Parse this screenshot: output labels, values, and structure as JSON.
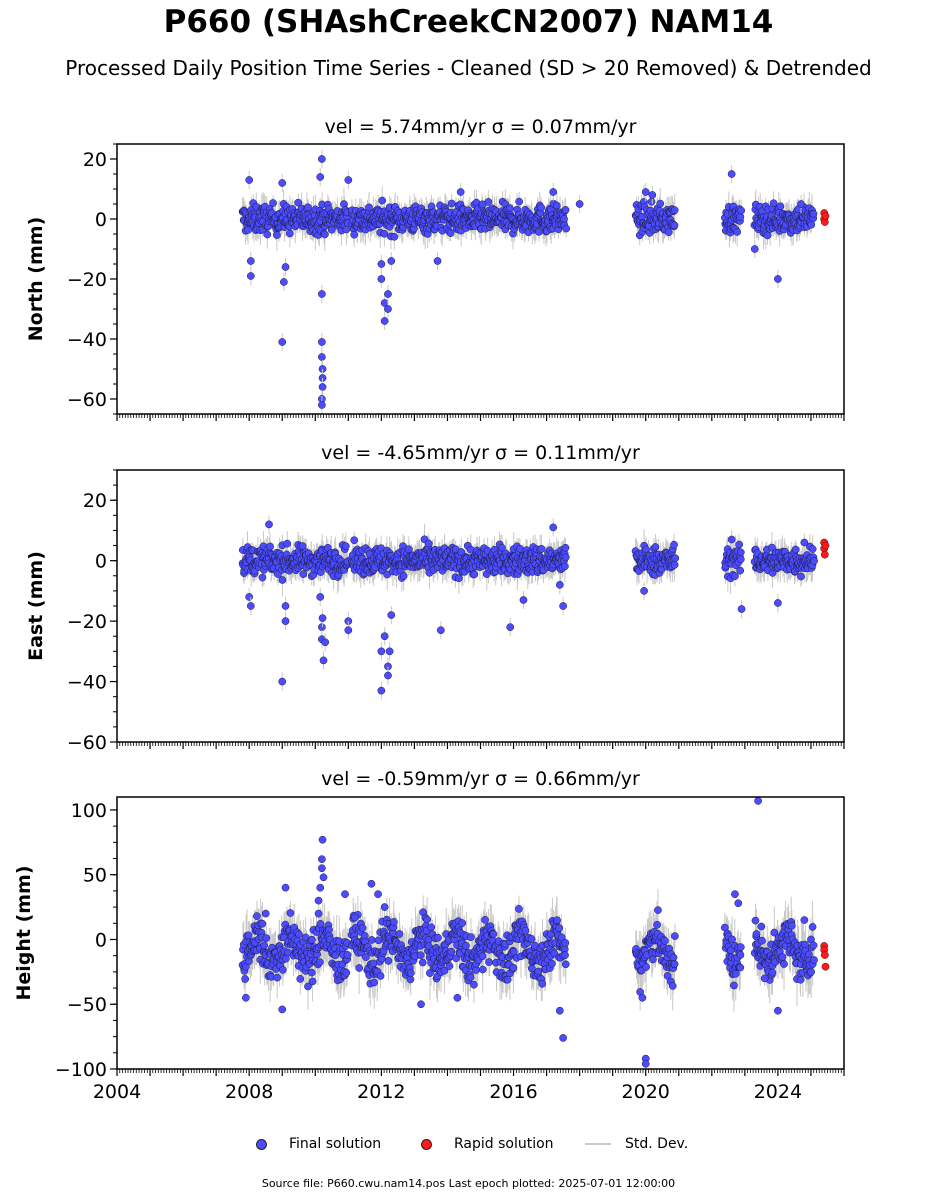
{
  "header": {
    "title": "P660 (SHAshCreekCN2007) NAM14",
    "subtitle": "Processed Daily Position Time Series - Cleaned (SD > 20 Removed) & Detrended"
  },
  "colors": {
    "final": "#4b4bff",
    "final_edge": "#1a1a3a",
    "rapid": "#ff1a1a",
    "stddev": "#c8c8c8"
  },
  "legend": {
    "final": "Final solution",
    "rapid": "Rapid solution",
    "stddev": "Std. Dev."
  },
  "footer": "Source file: P660.cwu.nam14.pos  Last epoch plotted: 2025-07-01 12:00:00",
  "chart_data": {
    "type": "scatter",
    "xlim": [
      2004,
      2026
    ],
    "xticks": [
      2004,
      2008,
      2012,
      2016,
      2020,
      2024
    ],
    "xtick_labels": [
      "2004",
      "2008",
      "2012",
      "2016",
      "2020",
      "2024"
    ],
    "panels": [
      {
        "title": "vel = 5.74mm/yr   σ = 0.07mm/yr",
        "ylabel": "North (mm)",
        "ylim": [
          -65,
          25
        ],
        "yticks": [
          20,
          0,
          -20,
          -40,
          -60
        ],
        "ytick_labels": [
          "20",
          "−20",
          "−40",
          "−60"
        ],
        "ytick_labels_full": [
          "20",
          "0",
          "−20",
          "−40",
          "−60"
        ],
        "segments": [
          [
            2007.8,
            2011.0
          ],
          [
            2011.1,
            2017.6
          ],
          [
            2019.7,
            2020.9
          ],
          [
            2022.4,
            2022.9
          ],
          [
            2023.3,
            2025.1
          ]
        ],
        "band": 4,
        "outliers": [
          [
            2008.0,
            13
          ],
          [
            2008.05,
            -14
          ],
          [
            2008.05,
            -19
          ],
          [
            2009.0,
            -41
          ],
          [
            2009.05,
            -21
          ],
          [
            2009.1,
            -16
          ],
          [
            2009.0,
            12
          ],
          [
            2010.2,
            -25
          ],
          [
            2010.2,
            -41
          ],
          [
            2010.2,
            -46
          ],
          [
            2010.22,
            -50
          ],
          [
            2010.22,
            -53
          ],
          [
            2010.22,
            -56
          ],
          [
            2010.2,
            -60
          ],
          [
            2010.2,
            -62
          ],
          [
            2010.2,
            20
          ],
          [
            2010.15,
            14
          ],
          [
            2011.0,
            13
          ],
          [
            2012.0,
            -15
          ],
          [
            2012.0,
            -20
          ],
          [
            2012.1,
            -28
          ],
          [
            2012.1,
            -34
          ],
          [
            2012.2,
            -30
          ],
          [
            2012.2,
            -25
          ],
          [
            2012.3,
            -14
          ],
          [
            2013.7,
            -14
          ],
          [
            2014.4,
            9
          ],
          [
            2017.2,
            9
          ],
          [
            2018.0,
            5
          ],
          [
            2020.0,
            9
          ],
          [
            2020.2,
            8
          ],
          [
            2022.6,
            15
          ],
          [
            2023.3,
            -10
          ],
          [
            2024.0,
            -20
          ],
          [
            2024.7,
            5
          ]
        ],
        "rapid": [
          [
            2025.4,
            2
          ],
          [
            2025.4,
            0
          ],
          [
            2025.42,
            -1
          ],
          [
            2025.44,
            1
          ]
        ]
      },
      {
        "title": "vel = -4.65mm/yr   σ = 0.11mm/yr",
        "ylabel": "East (mm)",
        "ylim": [
          -60,
          30
        ],
        "yticks": [
          20,
          0,
          -20,
          -40,
          -60
        ],
        "ytick_labels_full": [
          "20",
          "0",
          "−20",
          "−40",
          "−60"
        ],
        "segments": [
          [
            2007.8,
            2011.0
          ],
          [
            2011.1,
            2017.6
          ],
          [
            2019.7,
            2020.9
          ],
          [
            2022.4,
            2022.9
          ],
          [
            2023.3,
            2025.1
          ]
        ],
        "band": 4,
        "outliers": [
          [
            2008.0,
            -12
          ],
          [
            2008.05,
            -15
          ],
          [
            2008.6,
            12
          ],
          [
            2009.0,
            -40
          ],
          [
            2009.1,
            -20
          ],
          [
            2009.1,
            -15
          ],
          [
            2010.15,
            -12
          ],
          [
            2010.2,
            -22
          ],
          [
            2010.2,
            -26
          ],
          [
            2010.22,
            -19
          ],
          [
            2010.25,
            -33
          ],
          [
            2010.3,
            -27
          ],
          [
            2011.0,
            -20
          ],
          [
            2011.0,
            -23
          ],
          [
            2012.0,
            -30
          ],
          [
            2012.0,
            -43
          ],
          [
            2012.1,
            -25
          ],
          [
            2012.2,
            -35
          ],
          [
            2012.2,
            -38
          ],
          [
            2012.25,
            -30
          ],
          [
            2012.3,
            -18
          ],
          [
            2013.8,
            -23
          ],
          [
            2015.9,
            -22
          ],
          [
            2016.3,
            -13
          ],
          [
            2017.2,
            11
          ],
          [
            2017.4,
            -8
          ],
          [
            2017.5,
            -15
          ],
          [
            2019.95,
            -10
          ],
          [
            2022.6,
            7
          ],
          [
            2022.9,
            -16
          ],
          [
            2024.0,
            -14
          ],
          [
            2024.8,
            6
          ]
        ],
        "rapid": [
          [
            2025.4,
            6
          ],
          [
            2025.4,
            4
          ],
          [
            2025.42,
            2
          ],
          [
            2025.44,
            5
          ]
        ]
      },
      {
        "title": "vel = -0.59mm/yr   σ = 0.66mm/yr",
        "ylabel": "Height (mm)",
        "ylim": [
          -100,
          110
        ],
        "yticks": [
          100,
          50,
          0,
          -50,
          -100
        ],
        "ytick_labels_full": [
          "100",
          "50",
          "0",
          "−50",
          "−100"
        ],
        "segments": [
          [
            2007.8,
            2011.0
          ],
          [
            2011.1,
            2017.6
          ],
          [
            2019.7,
            2020.9
          ],
          [
            2022.4,
            2022.9
          ],
          [
            2023.3,
            2025.1
          ]
        ],
        "band": 15,
        "outliers": [
          [
            2007.9,
            -45
          ],
          [
            2008.5,
            20
          ],
          [
            2009.0,
            -54
          ],
          [
            2009.1,
            40
          ],
          [
            2010.1,
            20
          ],
          [
            2010.15,
            40
          ],
          [
            2010.2,
            55
          ],
          [
            2010.2,
            62
          ],
          [
            2010.22,
            77
          ],
          [
            2010.25,
            48
          ],
          [
            2010.1,
            30
          ],
          [
            2010.9,
            35
          ],
          [
            2011.2,
            17
          ],
          [
            2011.7,
            43
          ],
          [
            2011.9,
            35
          ],
          [
            2012.1,
            25
          ],
          [
            2013.2,
            -50
          ],
          [
            2014.3,
            -45
          ],
          [
            2017.4,
            -55
          ],
          [
            2017.5,
            -76
          ],
          [
            2019.9,
            -45
          ],
          [
            2020.0,
            -92
          ],
          [
            2020.0,
            -96
          ],
          [
            2022.7,
            35
          ],
          [
            2022.8,
            28
          ],
          [
            2023.4,
            107
          ],
          [
            2023.5,
            10
          ],
          [
            2023.6,
            -30
          ],
          [
            2024.0,
            -55
          ],
          [
            2024.8,
            15
          ]
        ],
        "rapid": [
          [
            2025.4,
            -5
          ],
          [
            2025.4,
            -8
          ],
          [
            2025.42,
            -12
          ],
          [
            2025.44,
            -21
          ]
        ]
      }
    ]
  }
}
